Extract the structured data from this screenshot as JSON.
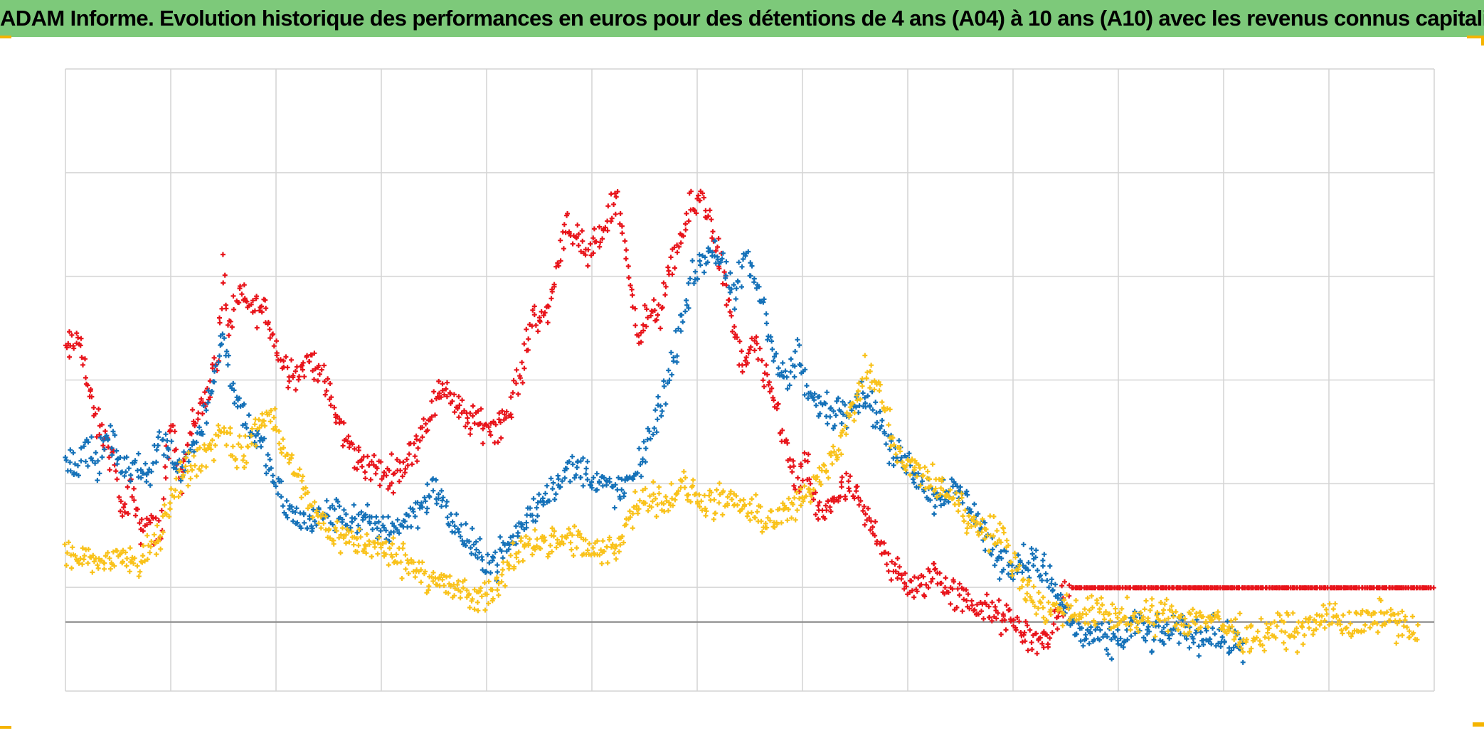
{
  "title": "ADAM Informe. Evolution historique des performances en euros pour des détentions de 4 ans (A04) à 10 ans (A10) avec les revenus connus capitalisés",
  "colors": {
    "title_background": "#7dc97a",
    "corner_accent": "#f5b400",
    "gridline": "#d4d4d4",
    "zero_line": "#8c8c8c"
  },
  "chart_data": {
    "type": "scatter",
    "title": "ADAM Informe. Evolution historique des performances en euros pour des détentions de 4 ans (A04) à 10 ans (A10) avec les revenus connus capitalisés",
    "marker": "+",
    "tick_labels_shown": false,
    "legend": "none",
    "grid": true,
    "x_gridline_count": 14,
    "y_gridline_count": 7,
    "xlim": [
      0,
      13
    ],
    "ylim": [
      -0.666,
      5.333
    ],
    "zero_line": 0,
    "series": [
      {
        "name": "",
        "color": "#e8141b",
        "points": [
          [
            0,
            2.6
          ],
          [
            0.15,
            2.75
          ],
          [
            0.2,
            2.3
          ],
          [
            0.3,
            1.9
          ],
          [
            0.45,
            1.6
          ],
          [
            0.55,
            1.0
          ],
          [
            0.62,
            1.3
          ],
          [
            0.7,
            0.9
          ],
          [
            0.8,
            1.0
          ],
          [
            0.9,
            0.8
          ],
          [
            1.0,
            2.0
          ],
          [
            1.1,
            1.4
          ],
          [
            1.2,
            1.9
          ],
          [
            1.35,
            2.2
          ],
          [
            1.45,
            2.6
          ],
          [
            1.5,
            3.4
          ],
          [
            1.55,
            2.8
          ],
          [
            1.65,
            3.15
          ],
          [
            1.75,
            3.05
          ],
          [
            1.9,
            3.0
          ],
          [
            2.05,
            2.5
          ],
          [
            2.2,
            2.4
          ],
          [
            2.35,
            2.55
          ],
          [
            2.5,
            2.2
          ],
          [
            2.6,
            1.9
          ],
          [
            2.75,
            1.6
          ],
          [
            2.9,
            1.5
          ],
          [
            3.05,
            1.4
          ],
          [
            3.25,
            1.55
          ],
          [
            3.45,
            2.0
          ],
          [
            3.6,
            2.3
          ],
          [
            3.75,
            2.0
          ],
          [
            3.95,
            1.9
          ],
          [
            4.1,
            1.9
          ],
          [
            4.2,
            2.0
          ],
          [
            4.35,
            2.5
          ],
          [
            4.45,
            3.0
          ],
          [
            4.55,
            2.9
          ],
          [
            4.65,
            3.3
          ],
          [
            4.75,
            3.9
          ],
          [
            4.85,
            3.7
          ],
          [
            4.95,
            3.5
          ],
          [
            5.05,
            3.65
          ],
          [
            5.15,
            3.9
          ],
          [
            5.25,
            4.1
          ],
          [
            5.35,
            3.3
          ],
          [
            5.45,
            2.8
          ],
          [
            5.55,
            2.95
          ],
          [
            5.65,
            3.0
          ],
          [
            5.75,
            3.4
          ],
          [
            5.85,
            3.7
          ],
          [
            5.95,
            4.0
          ],
          [
            6.05,
            4.1
          ],
          [
            6.15,
            3.8
          ],
          [
            6.25,
            3.3
          ],
          [
            6.35,
            2.8
          ],
          [
            6.45,
            2.4
          ],
          [
            6.55,
            2.7
          ],
          [
            6.65,
            2.3
          ],
          [
            6.75,
            2.1
          ],
          [
            6.85,
            1.65
          ],
          [
            6.95,
            1.3
          ],
          [
            7.05,
            1.5
          ],
          [
            7.15,
            1.0
          ],
          [
            7.3,
            1.2
          ],
          [
            7.45,
            1.3
          ],
          [
            7.6,
            1.0
          ],
          [
            7.75,
            0.8
          ],
          [
            7.85,
            0.5
          ],
          [
            7.95,
            0.4
          ],
          [
            8.1,
            0.3
          ],
          [
            8.25,
            0.5
          ],
          [
            8.4,
            0.3
          ],
          [
            8.55,
            0.2
          ],
          [
            8.7,
            0.15
          ],
          [
            8.85,
            0.05
          ],
          [
            9.0,
            0.0
          ],
          [
            9.15,
            -0.15
          ],
          [
            9.3,
            -0.2
          ],
          [
            9.55,
            0.33
          ],
          [
            10.5,
            0.33
          ],
          [
            11.5,
            0.33
          ],
          [
            12.5,
            0.33
          ],
          [
            13.0,
            0.33
          ]
        ]
      },
      {
        "name": "",
        "color": "#1471b8",
        "points": [
          [
            0,
            1.6
          ],
          [
            0.1,
            1.5
          ],
          [
            0.2,
            1.7
          ],
          [
            0.3,
            1.5
          ],
          [
            0.4,
            1.8
          ],
          [
            0.5,
            1.6
          ],
          [
            0.6,
            1.4
          ],
          [
            0.7,
            1.55
          ],
          [
            0.8,
            1.4
          ],
          [
            0.9,
            1.8
          ],
          [
            1.0,
            1.6
          ],
          [
            1.1,
            1.5
          ],
          [
            1.2,
            1.7
          ],
          [
            1.3,
            1.9
          ],
          [
            1.4,
            2.3
          ],
          [
            1.5,
            2.8
          ],
          [
            1.6,
            2.2
          ],
          [
            1.7,
            2.0
          ],
          [
            1.8,
            1.8
          ],
          [
            1.9,
            1.6
          ],
          [
            2.0,
            1.3
          ],
          [
            2.1,
            1.1
          ],
          [
            2.2,
            1.0
          ],
          [
            2.3,
            0.95
          ],
          [
            2.5,
            1.05
          ],
          [
            2.7,
            1.0
          ],
          [
            2.9,
            0.95
          ],
          [
            3.05,
            0.9
          ],
          [
            3.2,
            0.95
          ],
          [
            3.35,
            1.1
          ],
          [
            3.5,
            1.3
          ],
          [
            3.65,
            1.0
          ],
          [
            3.8,
            0.8
          ],
          [
            3.95,
            0.6
          ],
          [
            4.1,
            0.6
          ],
          [
            4.25,
            0.8
          ],
          [
            4.4,
            1.0
          ],
          [
            4.55,
            1.2
          ],
          [
            4.7,
            1.4
          ],
          [
            4.85,
            1.5
          ],
          [
            5.0,
            1.4
          ],
          [
            5.15,
            1.3
          ],
          [
            5.3,
            1.25
          ],
          [
            5.45,
            1.5
          ],
          [
            5.55,
            1.8
          ],
          [
            5.65,
            2.1
          ],
          [
            5.75,
            2.4
          ],
          [
            5.85,
            2.9
          ],
          [
            5.95,
            3.3
          ],
          [
            6.05,
            3.5
          ],
          [
            6.15,
            3.6
          ],
          [
            6.25,
            3.4
          ],
          [
            6.35,
            3.1
          ],
          [
            6.45,
            3.5
          ],
          [
            6.55,
            3.3
          ],
          [
            6.65,
            3.0
          ],
          [
            6.75,
            2.5
          ],
          [
            6.85,
            2.3
          ],
          [
            6.95,
            2.6
          ],
          [
            7.05,
            2.2
          ],
          [
            7.15,
            2.1
          ],
          [
            7.3,
            2.0
          ],
          [
            7.45,
            2.1
          ],
          [
            7.6,
            2.2
          ],
          [
            7.75,
            1.9
          ],
          [
            7.85,
            1.6
          ],
          [
            7.95,
            1.6
          ],
          [
            8.1,
            1.4
          ],
          [
            8.25,
            1.2
          ],
          [
            8.4,
            1.3
          ],
          [
            8.55,
            1.2
          ],
          [
            8.7,
            0.9
          ],
          [
            8.85,
            0.6
          ],
          [
            9.0,
            0.55
          ],
          [
            9.15,
            0.6
          ],
          [
            9.3,
            0.5
          ],
          [
            9.45,
            0.2
          ],
          [
            9.6,
            -0.1
          ],
          [
            9.75,
            -0.15
          ],
          [
            9.9,
            -0.2
          ],
          [
            10.05,
            -0.15
          ],
          [
            10.15,
            0.0
          ],
          [
            10.3,
            -0.15
          ],
          [
            10.45,
            -0.1
          ],
          [
            10.6,
            -0.05
          ],
          [
            10.75,
            -0.15
          ],
          [
            10.9,
            -0.1
          ],
          [
            11.05,
            -0.2
          ],
          [
            11.2,
            -0.25
          ]
        ]
      },
      {
        "name": "",
        "color": "#f9c21a",
        "points": [
          [
            0,
            0.7
          ],
          [
            0.1,
            0.55
          ],
          [
            0.2,
            0.6
          ],
          [
            0.3,
            0.55
          ],
          [
            0.4,
            0.6
          ],
          [
            0.5,
            0.65
          ],
          [
            0.6,
            0.6
          ],
          [
            0.7,
            0.55
          ],
          [
            0.8,
            0.7
          ],
          [
            0.9,
            0.85
          ],
          [
            1.0,
            1.2
          ],
          [
            1.1,
            1.4
          ],
          [
            1.2,
            1.5
          ],
          [
            1.3,
            1.6
          ],
          [
            1.4,
            1.7
          ],
          [
            1.5,
            1.9
          ],
          [
            1.6,
            1.65
          ],
          [
            1.7,
            1.6
          ],
          [
            1.8,
            1.85
          ],
          [
            1.9,
            2.0
          ],
          [
            2.0,
            1.9
          ],
          [
            2.1,
            1.6
          ],
          [
            2.2,
            1.4
          ],
          [
            2.3,
            1.2
          ],
          [
            2.4,
            1.0
          ],
          [
            2.55,
            0.85
          ],
          [
            2.7,
            0.8
          ],
          [
            2.85,
            0.75
          ],
          [
            3.0,
            0.7
          ],
          [
            3.15,
            0.65
          ],
          [
            3.3,
            0.55
          ],
          [
            3.45,
            0.45
          ],
          [
            3.6,
            0.35
          ],
          [
            3.75,
            0.3
          ],
          [
            3.9,
            0.2
          ],
          [
            4.05,
            0.3
          ],
          [
            4.2,
            0.5
          ],
          [
            4.35,
            0.75
          ],
          [
            4.5,
            0.8
          ],
          [
            4.65,
            0.75
          ],
          [
            4.8,
            0.8
          ],
          [
            4.95,
            0.7
          ],
          [
            5.1,
            0.65
          ],
          [
            5.25,
            0.75
          ],
          [
            5.4,
            1.1
          ],
          [
            5.55,
            1.25
          ],
          [
            5.7,
            1.15
          ],
          [
            5.85,
            1.3
          ],
          [
            6.0,
            1.2
          ],
          [
            6.15,
            1.15
          ],
          [
            6.3,
            1.15
          ],
          [
            6.45,
            1.1
          ],
          [
            6.6,
            1.0
          ],
          [
            6.75,
            1.0
          ],
          [
            6.9,
            1.1
          ],
          [
            7.05,
            1.2
          ],
          [
            7.2,
            1.5
          ],
          [
            7.35,
            1.7
          ],
          [
            7.5,
            2.1
          ],
          [
            7.6,
            2.4
          ],
          [
            7.7,
            2.3
          ],
          [
            7.8,
            2.0
          ],
          [
            7.9,
            1.6
          ],
          [
            8.0,
            1.5
          ],
          [
            8.15,
            1.4
          ],
          [
            8.3,
            1.3
          ],
          [
            8.45,
            1.2
          ],
          [
            8.6,
            0.95
          ],
          [
            8.75,
            0.9
          ],
          [
            8.9,
            0.8
          ],
          [
            9.0,
            0.6
          ],
          [
            9.15,
            0.3
          ],
          [
            9.3,
            0.1
          ],
          [
            9.45,
            0.15
          ],
          [
            9.6,
            0.08
          ],
          [
            9.75,
            0.1
          ],
          [
            9.9,
            0.08
          ],
          [
            10.05,
            0.05
          ],
          [
            10.2,
            0.0
          ],
          [
            10.35,
            0.05
          ],
          [
            10.5,
            0.1
          ],
          [
            10.65,
            0.0
          ],
          [
            10.8,
            0.05
          ],
          [
            10.95,
            0.0
          ],
          [
            11.1,
            -0.1
          ],
          [
            11.25,
            -0.15
          ],
          [
            11.4,
            -0.1
          ],
          [
            11.55,
            -0.05
          ],
          [
            11.7,
            -0.1
          ],
          [
            11.85,
            -0.05
          ],
          [
            12.0,
            0.1
          ],
          [
            12.1,
            0.0
          ],
          [
            12.25,
            -0.05
          ],
          [
            12.4,
            0.0
          ],
          [
            12.55,
            0.1
          ],
          [
            12.7,
            -0.05
          ],
          [
            12.85,
            -0.1
          ]
        ]
      }
    ]
  }
}
